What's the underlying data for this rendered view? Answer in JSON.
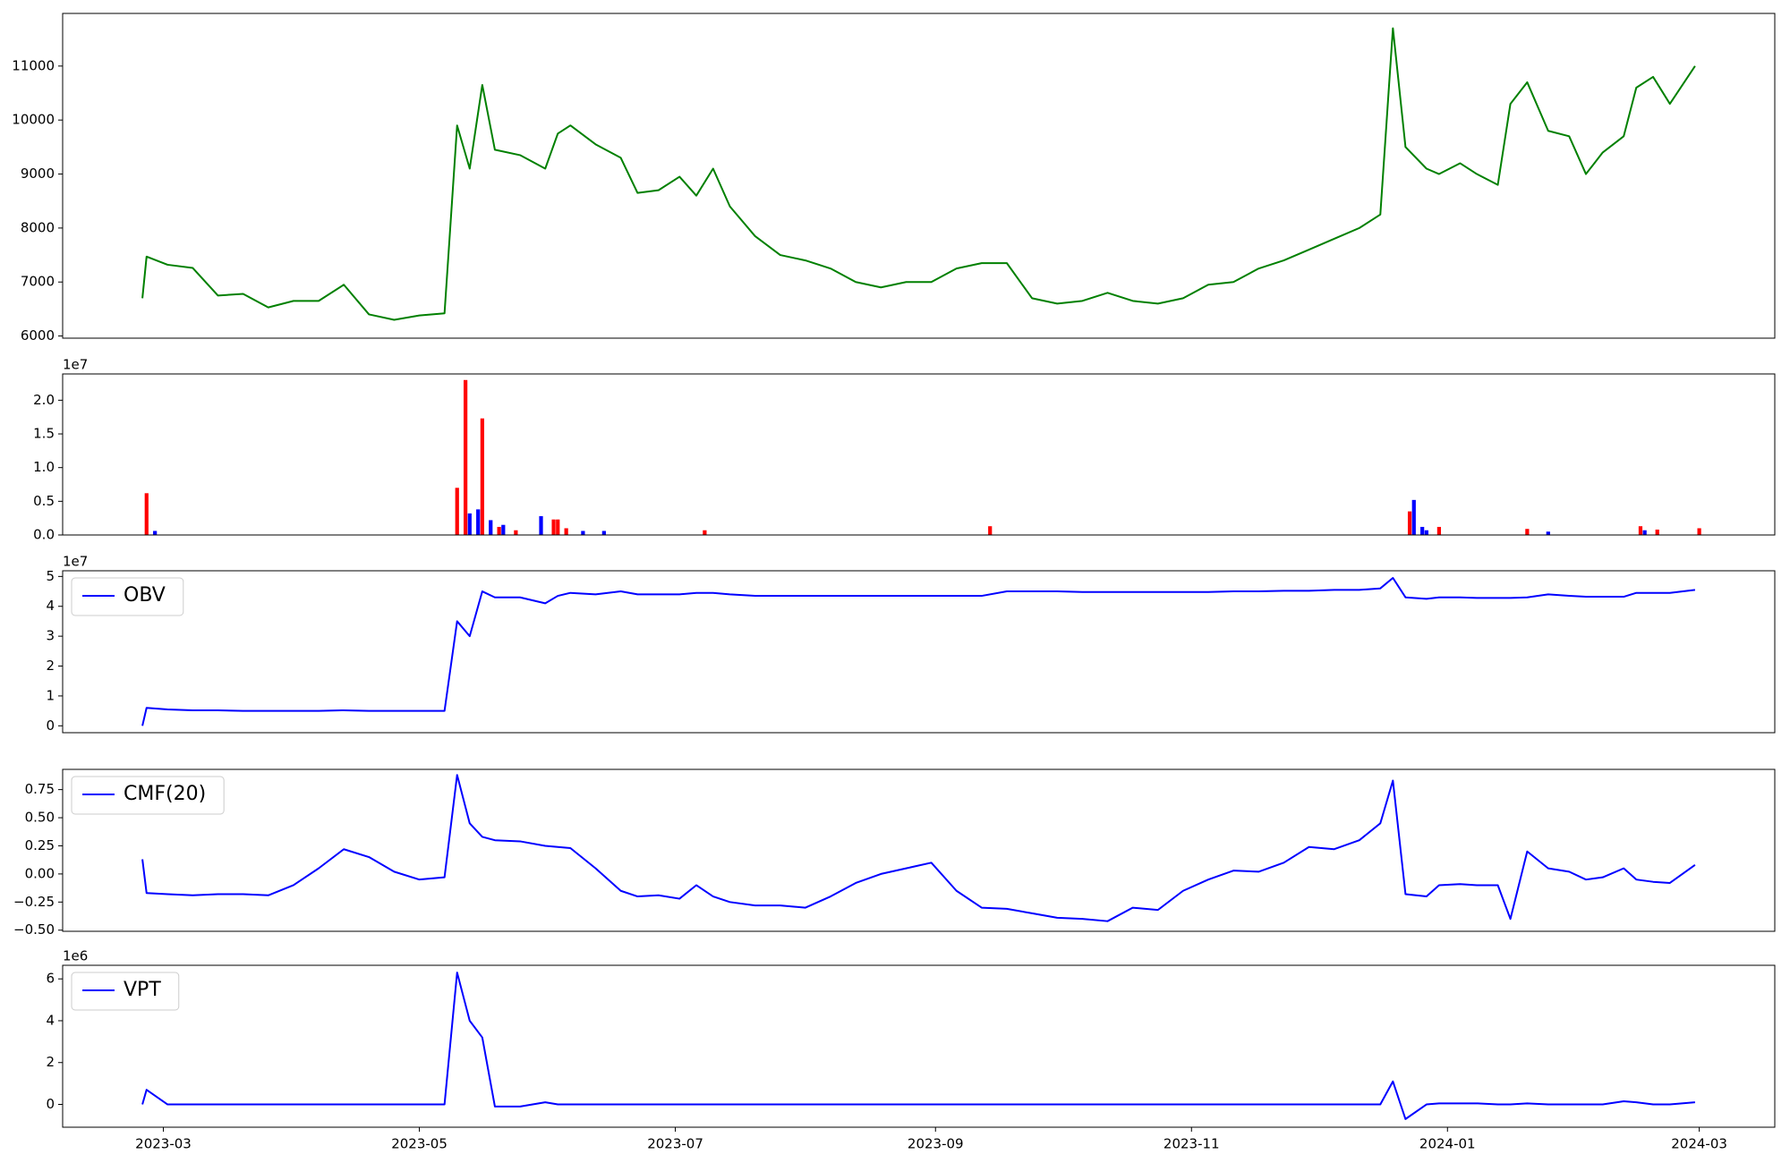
{
  "chart_data": [
    {
      "type": "line",
      "x": [
        19412,
        19413,
        19418,
        19424,
        19430,
        19436,
        19442,
        19448,
        19454,
        19460,
        19466,
        19472,
        19478,
        19484,
        19487,
        19490,
        19493,
        19496,
        19502,
        19508,
        19511,
        19514,
        19520,
        19526,
        19530,
        19535,
        19540,
        19544,
        19548,
        19552,
        19558,
        19564,
        19570,
        19576,
        19582,
        19588,
        19594,
        19600,
        19606,
        19612,
        19618,
        19624,
        19630,
        19636,
        19642,
        19648,
        19654,
        19660,
        19666,
        19672,
        19678,
        19684,
        19690,
        19696,
        19702,
        19707,
        19710,
        19713,
        19718,
        19721,
        19726,
        19730,
        19735,
        19738,
        19742,
        19747,
        19752,
        19756,
        19760,
        19765,
        19768,
        19772,
        19776,
        19782
      ],
      "series": [
        {
          "color": "#008000",
          "values": [
            6700,
            7470,
            7320,
            7260,
            6750,
            6780,
            6530,
            6650,
            6650,
            6950,
            6400,
            6300,
            6380,
            6420,
            9900,
            9100,
            10650,
            9450,
            9350,
            9100,
            9750,
            9900,
            9550,
            9300,
            8650,
            8700,
            8950,
            8600,
            9100,
            8400,
            7850,
            7500,
            7400,
            7250,
            7000,
            6900,
            7000,
            7000,
            7250,
            7350,
            7350,
            6700,
            6600,
            6650,
            6800,
            6650,
            6600,
            6700,
            6950,
            7000,
            7250,
            7400,
            7600,
            7800,
            8000,
            8250,
            11700,
            9500,
            9100,
            9000,
            9200,
            9000,
            8800,
            10300,
            10700,
            9800,
            9700,
            9000,
            9400,
            9700,
            10600,
            10800,
            10300,
            11000
          ]
        }
      ],
      "xlim": [
        19393,
        19801
      ],
      "ylim": [
        5960,
        11975
      ],
      "yticks": [
        6000,
        7000,
        8000,
        9000,
        10000,
        11000
      ]
    },
    {
      "type": "bar",
      "y_offset_label": "1e7",
      "x": [
        19413,
        19415,
        19487,
        19489,
        19490,
        19492,
        19493,
        19495,
        19497,
        19498,
        19501,
        19507,
        19510,
        19511,
        19513,
        19517,
        19522,
        19546,
        19614,
        19714,
        19715,
        19717,
        19718,
        19721,
        19742,
        19747,
        19769,
        19770,
        19773,
        19783
      ],
      "values": [
        0.62,
        0.06,
        0.7,
        2.3,
        0.32,
        0.38,
        1.73,
        0.22,
        0.12,
        0.15,
        0.07,
        0.28,
        0.23,
        0.23,
        0.1,
        0.06,
        0.06,
        0.07,
        0.13,
        0.35,
        0.52,
        0.12,
        0.07,
        0.12,
        0.09,
        0.05,
        0.13,
        0.07,
        0.08,
        0.1
      ],
      "colors": [
        "red",
        "blue",
        "red",
        "red",
        "blue",
        "blue",
        "red",
        "blue",
        "red",
        "blue",
        "red",
        "blue",
        "red",
        "red",
        "red",
        "blue",
        "blue",
        "red",
        "red",
        "red",
        "blue",
        "blue",
        "blue",
        "red",
        "red",
        "blue",
        "red",
        "blue",
        "red",
        "red"
      ],
      "xlim": [
        19393,
        19801
      ],
      "ylim": [
        0,
        2.39
      ],
      "yticks": [
        {
          "value": 0,
          "label": "0.0"
        },
        0.5,
        {
          "value": 1,
          "label": "1.0"
        },
        1.5,
        {
          "value": 2,
          "label": "2.0"
        }
      ]
    },
    {
      "type": "line",
      "y_offset_label": "1e7",
      "x": [
        19412,
        19413,
        19418,
        19424,
        19430,
        19436,
        19442,
        19448,
        19454,
        19460,
        19466,
        19472,
        19478,
        19484,
        19487,
        19490,
        19493,
        19496,
        19502,
        19508,
        19511,
        19514,
        19520,
        19526,
        19530,
        19535,
        19540,
        19544,
        19548,
        19552,
        19558,
        19564,
        19570,
        19576,
        19582,
        19588,
        19594,
        19600,
        19606,
        19612,
        19618,
        19624,
        19630,
        19636,
        19642,
        19648,
        19654,
        19660,
        19666,
        19672,
        19678,
        19684,
        19690,
        19696,
        19702,
        19707,
        19710,
        19713,
        19718,
        19721,
        19726,
        19730,
        19735,
        19738,
        19742,
        19747,
        19752,
        19756,
        19760,
        19765,
        19768,
        19772,
        19776,
        19782
      ],
      "series": [
        {
          "name": "OBV",
          "color": "#0000ff",
          "values": [
            0,
            0.6,
            0.55,
            0.52,
            0.52,
            0.5,
            0.5,
            0.5,
            0.5,
            0.52,
            0.5,
            0.5,
            0.5,
            0.5,
            3.5,
            3.0,
            4.5,
            4.3,
            4.3,
            4.1,
            4.35,
            4.45,
            4.4,
            4.5,
            4.4,
            4.4,
            4.4,
            4.45,
            4.45,
            4.4,
            4.35,
            4.35,
            4.35,
            4.35,
            4.35,
            4.35,
            4.35,
            4.35,
            4.35,
            4.35,
            4.5,
            4.5,
            4.5,
            4.48,
            4.48,
            4.48,
            4.48,
            4.48,
            4.48,
            4.5,
            4.5,
            4.52,
            4.52,
            4.55,
            4.55,
            4.6,
            4.95,
            4.3,
            4.25,
            4.3,
            4.3,
            4.28,
            4.28,
            4.28,
            4.3,
            4.4,
            4.35,
            4.32,
            4.32,
            4.32,
            4.45,
            4.45,
            4.45,
            4.55
          ]
        }
      ],
      "xlim": [
        19393,
        19801
      ],
      "ylim": [
        -0.23,
        5.19
      ],
      "yticks": [
        0,
        1,
        2,
        3,
        4,
        5
      ]
    },
    {
      "type": "line",
      "x": [
        19412,
        19413,
        19418,
        19424,
        19430,
        19436,
        19442,
        19448,
        19454,
        19460,
        19466,
        19472,
        19478,
        19484,
        19487,
        19490,
        19493,
        19496,
        19502,
        19508,
        19511,
        19514,
        19520,
        19526,
        19530,
        19535,
        19540,
        19544,
        19548,
        19552,
        19558,
        19564,
        19570,
        19576,
        19582,
        19588,
        19594,
        19600,
        19606,
        19612,
        19618,
        19624,
        19630,
        19636,
        19642,
        19648,
        19654,
        19660,
        19666,
        19672,
        19678,
        19684,
        19690,
        19696,
        19702,
        19707,
        19710,
        19713,
        19718,
        19721,
        19726,
        19730,
        19735,
        19738,
        19742,
        19747,
        19752,
        19756,
        19760,
        19765,
        19768,
        19772,
        19776,
        19782
      ],
      "series": [
        {
          "name": "CMF(20)",
          "color": "#0000ff",
          "values": [
            0.13,
            -0.17,
            -0.18,
            -0.19,
            -0.18,
            -0.18,
            -0.19,
            -0.1,
            0.05,
            0.22,
            0.15,
            0.02,
            -0.05,
            -0.03,
            0.88,
            0.45,
            0.33,
            0.3,
            0.29,
            0.25,
            0.24,
            0.23,
            0.05,
            -0.15,
            -0.2,
            -0.19,
            -0.22,
            -0.1,
            -0.2,
            -0.25,
            -0.28,
            -0.28,
            -0.3,
            -0.2,
            -0.08,
            0.0,
            0.05,
            0.1,
            -0.15,
            -0.3,
            -0.31,
            -0.35,
            -0.39,
            -0.4,
            -0.42,
            -0.3,
            -0.32,
            -0.15,
            -0.05,
            0.03,
            0.02,
            0.1,
            0.24,
            0.22,
            0.3,
            0.45,
            0.83,
            -0.18,
            -0.2,
            -0.1,
            -0.09,
            -0.1,
            -0.1,
            -0.4,
            0.2,
            0.05,
            0.02,
            -0.05,
            -0.03,
            0.05,
            -0.05,
            -0.07,
            -0.08,
            0.08
          ]
        }
      ],
      "xlim": [
        19393,
        19801
      ],
      "ylim": [
        -0.51,
        0.93
      ],
      "yticks": [
        {
          "value": -0.5,
          "label": "−0.50"
        },
        {
          "value": -0.25,
          "label": "−0.25"
        },
        {
          "value": 0,
          "label": "0.00"
        },
        0.25,
        {
          "value": 0.5,
          "label": "0.50"
        },
        0.75
      ]
    },
    {
      "type": "line",
      "y_offset_label": "1e6",
      "x": [
        19412,
        19413,
        19418,
        19424,
        19430,
        19436,
        19442,
        19448,
        19454,
        19460,
        19466,
        19472,
        19478,
        19484,
        19487,
        19490,
        19493,
        19496,
        19502,
        19508,
        19511,
        19514,
        19520,
        19526,
        19530,
        19535,
        19540,
        19544,
        19548,
        19552,
        19558,
        19564,
        19570,
        19576,
        19582,
        19588,
        19594,
        19600,
        19606,
        19612,
        19618,
        19624,
        19630,
        19636,
        19642,
        19648,
        19654,
        19660,
        19666,
        19672,
        19678,
        19684,
        19690,
        19696,
        19702,
        19707,
        19710,
        19713,
        19718,
        19721,
        19726,
        19730,
        19735,
        19738,
        19742,
        19747,
        19752,
        19756,
        19760,
        19765,
        19768,
        19772,
        19776,
        19782
      ],
      "series": [
        {
          "name": "VPT",
          "color": "#0000ff",
          "values": [
            0,
            0.7,
            0,
            0,
            0,
            0,
            0,
            0,
            0,
            0,
            0,
            0,
            0,
            0,
            6.3,
            4.0,
            3.2,
            -0.1,
            -0.1,
            0.1,
            0,
            0,
            0,
            0,
            0,
            0,
            0,
            0,
            0,
            0,
            0,
            0,
            0,
            0,
            0,
            0,
            0,
            0,
            0,
            0,
            0,
            0,
            0,
            0,
            0,
            0,
            0,
            0,
            0,
            0,
            0,
            0,
            0,
            0,
            0,
            0,
            1.1,
            -0.7,
            0,
            0.05,
            0.05,
            0.05,
            0,
            0,
            0.05,
            0,
            0,
            0,
            0,
            0.15,
            0.1,
            0,
            0,
            0.1
          ]
        }
      ],
      "xlim": [
        19393,
        19801
      ],
      "ylim": [
        -1.09,
        6.65
      ],
      "yticks": [
        0,
        2,
        4,
        6
      ],
      "xticks": [
        {
          "value": 19417,
          "label": "2023-03"
        },
        {
          "value": 19478,
          "label": "2023-05"
        },
        {
          "value": 19539,
          "label": "2023-07"
        },
        {
          "value": 19601,
          "label": "2023-09"
        },
        {
          "value": 19662,
          "label": "2023-11"
        },
        {
          "value": 19723,
          "label": "2024-01"
        },
        {
          "value": 19783,
          "label": "2024-03"
        }
      ]
    }
  ]
}
